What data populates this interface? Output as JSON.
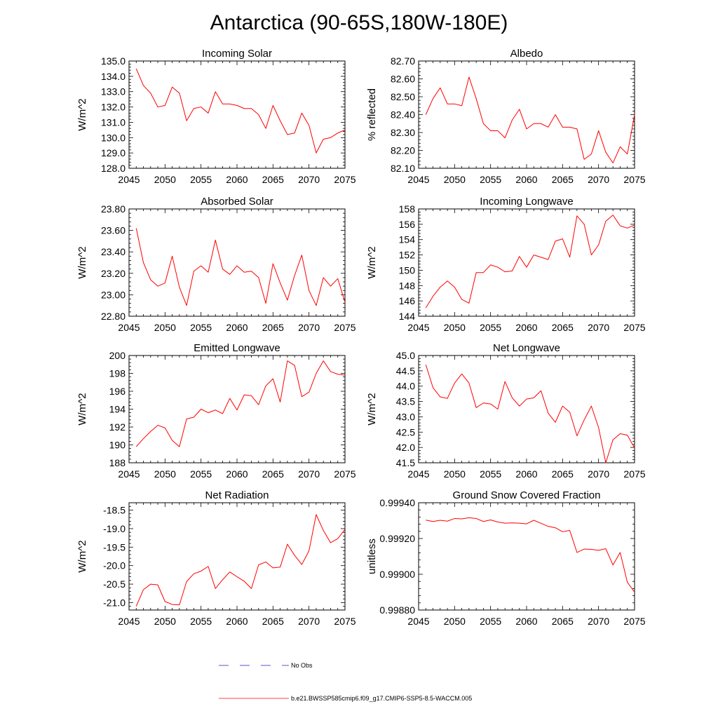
{
  "figure": {
    "title": "Antarctica (90-65S,180W-180E)"
  },
  "legend": {
    "entries": [
      {
        "label": "No Obs",
        "color": "#1f1fc8",
        "style": "dashed"
      },
      {
        "label": "b.e21.BWSSP585cmip6.f09_g17.CMIP6-SSP5-8.5-WACCM.005",
        "color": "#ff0000",
        "style": "solid"
      }
    ]
  },
  "chart_data": [
    {
      "type": "line",
      "title": "Incoming Solar",
      "xlabel": "",
      "ylabel": "W/m^2",
      "xlim": [
        2045,
        2075
      ],
      "ylim": [
        128.0,
        135.0
      ],
      "xticks": [
        2045,
        2050,
        2055,
        2060,
        2065,
        2070,
        2075
      ],
      "xtick_labels": [
        "2045",
        "2050",
        "2055",
        "2060",
        "2065",
        "2070",
        "2075"
      ],
      "yticks": [
        128.0,
        129.0,
        130.0,
        131.0,
        132.0,
        133.0,
        134.0,
        135.0
      ],
      "ytick_labels": [
        "128.0",
        "129.0",
        "130.0",
        "131.0",
        "132.0",
        "133.0",
        "134.0",
        "135.0"
      ],
      "series": [
        {
          "name": "b.e21.BWSSP585cmip6.f09_g17.CMIP6-SSP5-8.5-WACCM.005",
          "color": "#ff0000",
          "x": [
            2046,
            2047,
            2048,
            2049,
            2050,
            2051,
            2052,
            2053,
            2054,
            2055,
            2056,
            2057,
            2058,
            2059,
            2060,
            2061,
            2062,
            2063,
            2064,
            2065,
            2066,
            2067,
            2068,
            2069,
            2070,
            2071,
            2072,
            2073,
            2074,
            2075
          ],
          "values": [
            134.5,
            133.4,
            132.9,
            132.0,
            132.1,
            133.3,
            132.9,
            131.1,
            131.9,
            132.0,
            131.6,
            133.0,
            132.2,
            132.2,
            132.1,
            131.9,
            131.9,
            131.5,
            130.6,
            132.1,
            131.1,
            130.2,
            130.3,
            131.6,
            130.8,
            129.0,
            129.9,
            130.0,
            130.3,
            130.5
          ]
        }
      ]
    },
    {
      "type": "line",
      "title": "Albedo",
      "xlabel": "",
      "ylabel": "% reflected",
      "xlim": [
        2045,
        2075
      ],
      "ylim": [
        82.1,
        82.7
      ],
      "xticks": [
        2045,
        2050,
        2055,
        2060,
        2065,
        2070,
        2075
      ],
      "xtick_labels": [
        "2045",
        "2050",
        "2055",
        "2060",
        "2065",
        "2070",
        "2075"
      ],
      "yticks": [
        82.1,
        82.2,
        82.3,
        82.4,
        82.5,
        82.6,
        82.7
      ],
      "ytick_labels": [
        "82.10",
        "82.20",
        "82.30",
        "82.40",
        "82.50",
        "82.60",
        "82.70"
      ],
      "series": [
        {
          "name": "b.e21.BWSSP585cmip6.f09_g17.CMIP6-SSP5-8.5-WACCM.005",
          "color": "#ff0000",
          "x": [
            2046,
            2047,
            2048,
            2049,
            2050,
            2051,
            2052,
            2053,
            2054,
            2055,
            2056,
            2057,
            2058,
            2059,
            2060,
            2061,
            2062,
            2063,
            2064,
            2065,
            2066,
            2067,
            2068,
            2069,
            2070,
            2071,
            2072,
            2073,
            2074,
            2075
          ],
          "values": [
            82.4,
            82.49,
            82.55,
            82.46,
            82.46,
            82.45,
            82.61,
            82.49,
            82.35,
            82.31,
            82.31,
            82.27,
            82.37,
            82.43,
            82.32,
            82.35,
            82.35,
            82.33,
            82.4,
            82.33,
            82.33,
            82.32,
            82.15,
            82.18,
            82.31,
            82.19,
            82.13,
            82.22,
            82.18,
            82.4
          ]
        }
      ]
    },
    {
      "type": "line",
      "title": "Absorbed Solar",
      "xlabel": "",
      "ylabel": "W/m^2",
      "xlim": [
        2045,
        2075
      ],
      "ylim": [
        22.8,
        23.8
      ],
      "xticks": [
        2045,
        2050,
        2055,
        2060,
        2065,
        2070,
        2075
      ],
      "xtick_labels": [
        "2045",
        "2050",
        "2055",
        "2060",
        "2065",
        "2070",
        "2075"
      ],
      "yticks": [
        22.8,
        23.0,
        23.2,
        23.4,
        23.6,
        23.8
      ],
      "ytick_labels": [
        "22.80",
        "23.00",
        "23.20",
        "23.40",
        "23.60",
        "23.80"
      ],
      "series": [
        {
          "name": "b.e21.BWSSP585cmip6.f09_g17.CMIP6-SSP5-8.5-WACCM.005",
          "color": "#ff0000",
          "x": [
            2046,
            2047,
            2048,
            2049,
            2050,
            2051,
            2052,
            2053,
            2054,
            2055,
            2056,
            2057,
            2058,
            2059,
            2060,
            2061,
            2062,
            2063,
            2064,
            2065,
            2066,
            2067,
            2068,
            2069,
            2070,
            2071,
            2072,
            2073,
            2074,
            2075
          ],
          "values": [
            23.62,
            23.3,
            23.14,
            23.08,
            23.11,
            23.36,
            23.07,
            22.9,
            23.22,
            23.27,
            23.21,
            23.51,
            23.24,
            23.19,
            23.27,
            23.21,
            23.22,
            23.16,
            22.92,
            23.29,
            23.11,
            22.95,
            23.18,
            23.37,
            23.04,
            22.9,
            23.16,
            23.08,
            23.15,
            22.93
          ]
        }
      ]
    },
    {
      "type": "line",
      "title": "Incoming Longwave",
      "xlabel": "",
      "ylabel": "W/m^2",
      "xlim": [
        2045,
        2075
      ],
      "ylim": [
        144,
        158
      ],
      "xticks": [
        2045,
        2050,
        2055,
        2060,
        2065,
        2070,
        2075
      ],
      "xtick_labels": [
        "2045",
        "2050",
        "2055",
        "2060",
        "2065",
        "2070",
        "2075"
      ],
      "yticks": [
        144,
        146,
        148,
        150,
        152,
        154,
        156,
        158
      ],
      "ytick_labels": [
        "144",
        "146",
        "148",
        "150",
        "152",
        "154",
        "156",
        "158"
      ],
      "series": [
        {
          "name": "b.e21.BWSSP585cmip6.f09_g17.CMIP6-SSP5-8.5-WACCM.005",
          "color": "#ff0000",
          "x": [
            2046,
            2047,
            2048,
            2049,
            2050,
            2051,
            2052,
            2053,
            2054,
            2055,
            2056,
            2057,
            2058,
            2059,
            2060,
            2061,
            2062,
            2063,
            2064,
            2065,
            2066,
            2067,
            2068,
            2069,
            2070,
            2071,
            2072,
            2073,
            2074,
            2075
          ],
          "values": [
            145.1,
            146.6,
            147.8,
            148.6,
            147.8,
            146.2,
            145.7,
            149.7,
            149.7,
            150.7,
            150.4,
            149.8,
            149.9,
            151.8,
            150.4,
            152.0,
            151.7,
            151.4,
            153.8,
            154.1,
            151.7,
            157.1,
            156.0,
            152.0,
            153.3,
            156.4,
            157.2,
            155.8,
            155.5,
            155.9
          ]
        }
      ]
    },
    {
      "type": "line",
      "title": "Emitted Longwave",
      "xlabel": "",
      "ylabel": "W/m^2",
      "xlim": [
        2045,
        2075
      ],
      "ylim": [
        188,
        200
      ],
      "xticks": [
        2045,
        2050,
        2055,
        2060,
        2065,
        2070,
        2075
      ],
      "xtick_labels": [
        "2045",
        "2050",
        "2055",
        "2060",
        "2065",
        "2070",
        "2075"
      ],
      "yticks": [
        188,
        190,
        192,
        194,
        196,
        198,
        200
      ],
      "ytick_labels": [
        "188",
        "190",
        "192",
        "194",
        "196",
        "198",
        "200"
      ],
      "series": [
        {
          "name": "b.e21.BWSSP585cmip6.f09_g17.CMIP6-SSP5-8.5-WACCM.005",
          "color": "#ff0000",
          "x": [
            2046,
            2047,
            2048,
            2049,
            2050,
            2051,
            2052,
            2053,
            2054,
            2055,
            2056,
            2057,
            2058,
            2059,
            2060,
            2061,
            2062,
            2063,
            2064,
            2065,
            2066,
            2067,
            2068,
            2069,
            2070,
            2071,
            2072,
            2073,
            2074,
            2075
          ],
          "values": [
            189.8,
            190.7,
            191.5,
            192.2,
            191.9,
            190.5,
            189.8,
            192.9,
            193.1,
            194.0,
            193.6,
            193.9,
            193.5,
            195.2,
            193.9,
            195.6,
            195.5,
            194.5,
            196.6,
            197.4,
            194.8,
            199.4,
            198.9,
            195.4,
            195.9,
            198.0,
            199.4,
            198.2,
            197.9,
            197.8
          ]
        }
      ]
    },
    {
      "type": "line",
      "title": "Net Longwave",
      "xlabel": "",
      "ylabel": "W/m^2",
      "xlim": [
        2045,
        2075
      ],
      "ylim": [
        41.5,
        45.0
      ],
      "xticks": [
        2045,
        2050,
        2055,
        2060,
        2065,
        2070,
        2075
      ],
      "xtick_labels": [
        "2045",
        "2050",
        "2055",
        "2060",
        "2065",
        "2070",
        "2075"
      ],
      "yticks": [
        41.5,
        42.0,
        42.5,
        43.0,
        43.5,
        44.0,
        44.5,
        45.0
      ],
      "ytick_labels": [
        "41.5",
        "42.0",
        "42.5",
        "43.0",
        "43.5",
        "44.0",
        "44.5",
        "45.0"
      ],
      "series": [
        {
          "name": "b.e21.BWSSP585cmip6.f09_g17.CMIP6-SSP5-8.5-WACCM.005",
          "color": "#ff0000",
          "x": [
            2046,
            2047,
            2048,
            2049,
            2050,
            2051,
            2052,
            2053,
            2054,
            2055,
            2056,
            2057,
            2058,
            2059,
            2060,
            2061,
            2062,
            2063,
            2064,
            2065,
            2066,
            2067,
            2068,
            2069,
            2070,
            2071,
            2072,
            2073,
            2074,
            2075
          ],
          "values": [
            44.7,
            43.95,
            43.65,
            43.6,
            44.1,
            44.4,
            44.1,
            43.3,
            43.45,
            43.42,
            43.25,
            44.15,
            43.62,
            43.35,
            43.58,
            43.62,
            43.85,
            43.12,
            42.82,
            43.35,
            43.15,
            42.38,
            42.9,
            43.35,
            42.65,
            41.5,
            42.25,
            42.45,
            42.4,
            41.98
          ]
        }
      ]
    },
    {
      "type": "line",
      "title": "Net Radiation",
      "xlabel": "",
      "ylabel": "W/m^2",
      "xlim": [
        2045,
        2075
      ],
      "ylim": [
        -21.2,
        -18.3
      ],
      "xticks": [
        2045,
        2050,
        2055,
        2060,
        2065,
        2070,
        2075
      ],
      "xtick_labels": [
        "2045",
        "2050",
        "2055",
        "2060",
        "2065",
        "2070",
        "2075"
      ],
      "yticks": [
        -21.0,
        -20.5,
        -20.0,
        -19.5,
        -19.0,
        -18.5
      ],
      "ytick_labels": [
        "-21.0",
        "-20.5",
        "-20.0",
        "-19.5",
        "-19.0",
        "-18.5"
      ],
      "series": [
        {
          "name": "b.e21.BWSSP585cmip6.f09_g17.CMIP6-SSP5-8.5-WACCM.005",
          "color": "#ff0000",
          "x": [
            2046,
            2047,
            2048,
            2049,
            2050,
            2051,
            2052,
            2053,
            2054,
            2055,
            2056,
            2057,
            2058,
            2059,
            2060,
            2061,
            2062,
            2063,
            2064,
            2065,
            2066,
            2067,
            2068,
            2069,
            2070,
            2071,
            2072,
            2073,
            2074,
            2075
          ],
          "values": [
            -21.1,
            -20.65,
            -20.5,
            -20.52,
            -20.97,
            -21.05,
            -21.06,
            -20.43,
            -20.22,
            -20.15,
            -20.02,
            -20.62,
            -20.38,
            -20.17,
            -20.3,
            -20.42,
            -20.62,
            -19.98,
            -19.9,
            -20.06,
            -20.04,
            -19.42,
            -19.72,
            -19.97,
            -19.6,
            -18.62,
            -19.05,
            -19.38,
            -19.27,
            -19.02
          ]
        }
      ]
    },
    {
      "type": "line",
      "title": "Ground Snow Covered Fraction",
      "xlabel": "",
      "ylabel": "unitless",
      "xlim": [
        2045,
        2075
      ],
      "ylim": [
        0.9988,
        0.9994
      ],
      "xticks": [
        2045,
        2050,
        2055,
        2060,
        2065,
        2070,
        2075
      ],
      "xtick_labels": [
        "2045",
        "2050",
        "2055",
        "2060",
        "2065",
        "2070",
        "2075"
      ],
      "yticks": [
        0.9988,
        0.999,
        0.9992,
        0.9994
      ],
      "ytick_labels": [
        "0.99880",
        "0.99900",
        "0.99920",
        "0.99940"
      ],
      "series": [
        {
          "name": "b.e21.BWSSP585cmip6.f09_g17.CMIP6-SSP5-8.5-WACCM.005",
          "color": "#ff0000",
          "x": [
            2046,
            2047,
            2048,
            2049,
            2050,
            2051,
            2052,
            2053,
            2054,
            2055,
            2056,
            2057,
            2058,
            2059,
            2060,
            2061,
            2062,
            2063,
            2064,
            2065,
            2066,
            2067,
            2068,
            2069,
            2070,
            2071,
            2072,
            2073,
            2074,
            2075
          ],
          "values": [
            0.999303,
            0.999295,
            0.999302,
            0.999297,
            0.999312,
            0.99931,
            0.999316,
            0.999312,
            0.999295,
            0.999304,
            0.999292,
            0.999286,
            0.999287,
            0.999286,
            0.999282,
            0.999302,
            0.999285,
            0.999268,
            0.99926,
            0.999238,
            0.999245,
            0.999122,
            0.999141,
            0.999139,
            0.999134,
            0.999143,
            0.999052,
            0.999122,
            0.998955,
            0.9989
          ]
        }
      ]
    }
  ]
}
